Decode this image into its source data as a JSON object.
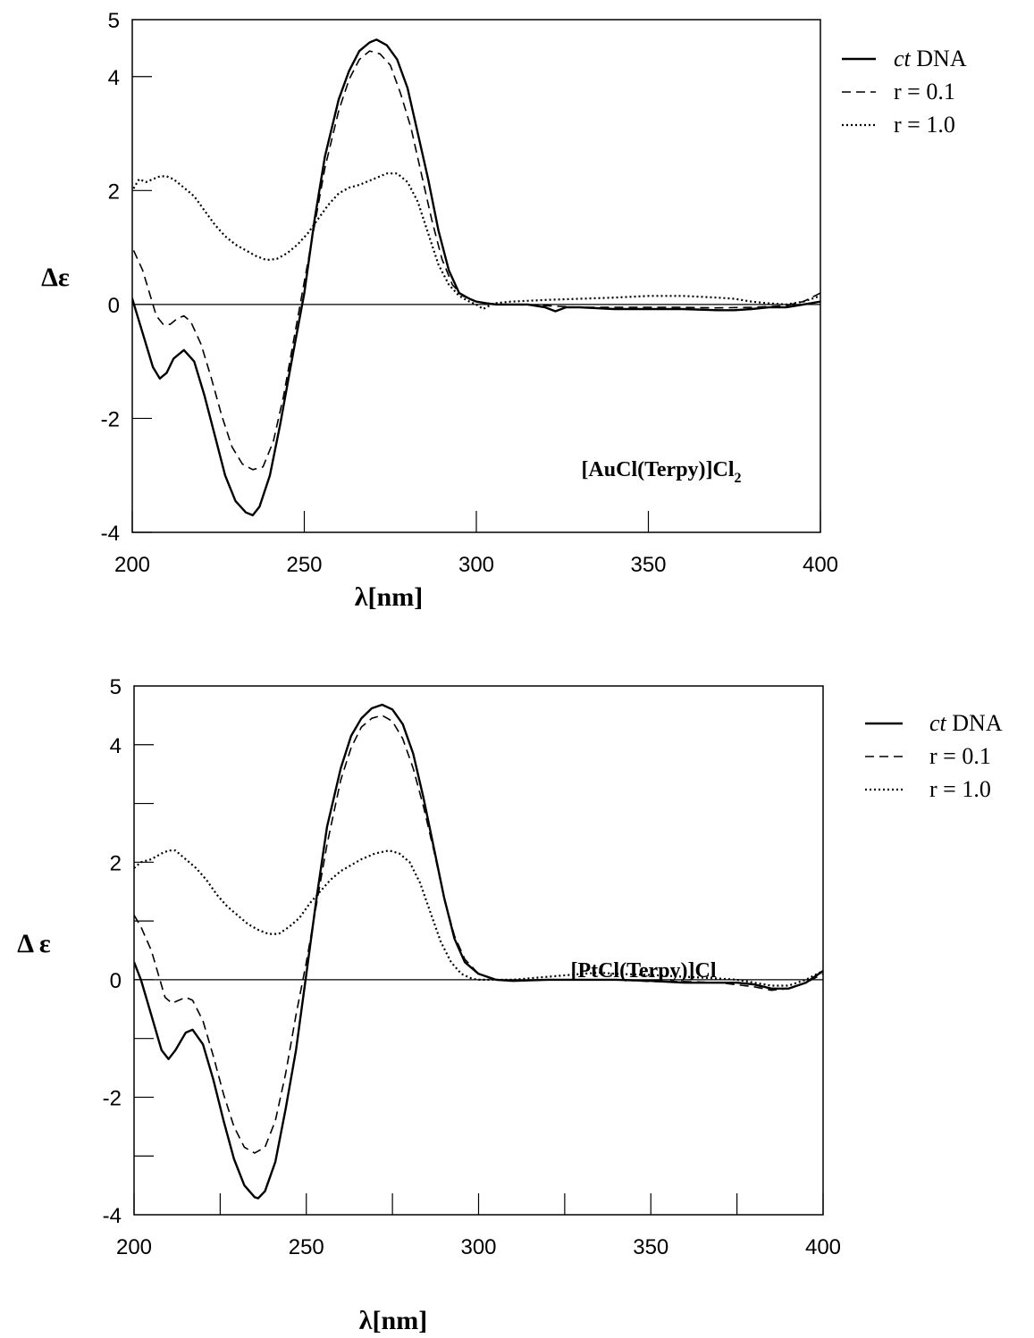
{
  "chart_data": [
    {
      "type": "line",
      "xlabel": "λ[nm]",
      "ylabel": "Δε",
      "xlim": [
        200,
        400
      ],
      "ylim": [
        -4,
        5
      ],
      "xticks": [
        200,
        250,
        300,
        350,
        400
      ],
      "xtick_labels": [
        "200",
        "250",
        "300",
        "350",
        "400"
      ],
      "yticks": [
        -4,
        -2,
        0,
        2,
        4
      ],
      "ytick_labels": [
        "-4",
        "-2",
        "0",
        "2",
        "4",
        "5"
      ],
      "ytick_label_values": [
        -4,
        -2,
        0,
        2,
        4,
        5
      ],
      "grid": false,
      "legend_position": "top-right, outside plot",
      "annotation": {
        "prefix": "[AuCl(Terpy)]Cl",
        "subscript": "2",
        "position": "lower-right"
      },
      "series": [
        {
          "name": "ct DNA",
          "name_italic": "ct",
          "name_rest": " DNA",
          "style": "solid",
          "x": [
            198,
            200,
            203,
            206,
            208,
            210,
            212,
            215,
            218,
            221,
            224,
            227,
            230,
            233,
            235,
            237,
            240,
            243,
            246,
            250,
            253,
            256,
            260,
            263,
            266,
            269,
            271,
            274,
            277,
            280,
            283,
            286,
            289,
            292,
            295,
            298,
            300,
            303,
            306,
            310,
            315,
            320,
            323,
            326,
            330,
            340,
            350,
            360,
            370,
            375,
            380,
            385,
            390,
            395,
            400
          ],
          "y": [
            0.3,
            0.1,
            -0.5,
            -1.1,
            -1.3,
            -1.2,
            -0.95,
            -0.8,
            -1.0,
            -1.6,
            -2.3,
            -3.0,
            -3.45,
            -3.65,
            -3.7,
            -3.55,
            -3.0,
            -2.1,
            -1.1,
            0.2,
            1.5,
            2.6,
            3.6,
            4.1,
            4.45,
            4.6,
            4.65,
            4.55,
            4.3,
            3.8,
            3.0,
            2.2,
            1.3,
            0.6,
            0.2,
            0.1,
            0.05,
            0.02,
            0.0,
            0.0,
            0.0,
            -0.05,
            -0.12,
            -0.05,
            -0.05,
            -0.08,
            -0.08,
            -0.08,
            -0.1,
            -0.1,
            -0.08,
            -0.05,
            -0.05,
            0.0,
            0.05
          ]
        },
        {
          "name": "r = 0.1",
          "name_italic": "",
          "name_rest": "r = 0.1",
          "style": "dashed",
          "x": [
            198,
            200,
            203,
            205,
            207,
            209,
            211,
            213,
            215,
            217,
            220,
            223,
            226,
            229,
            232,
            235,
            238,
            241,
            244,
            247,
            250,
            253,
            256,
            260,
            263,
            266,
            269,
            272,
            275,
            278,
            281,
            284,
            287,
            290,
            293,
            296,
            300,
            305,
            310,
            320,
            330,
            340,
            350,
            360,
            370,
            380,
            390,
            395,
            400
          ],
          "y": [
            1.15,
            1.0,
            0.6,
            0.2,
            -0.2,
            -0.35,
            -0.35,
            -0.25,
            -0.2,
            -0.3,
            -0.7,
            -1.3,
            -1.95,
            -2.5,
            -2.8,
            -2.9,
            -2.85,
            -2.4,
            -1.6,
            -0.6,
            0.4,
            1.4,
            2.4,
            3.4,
            3.95,
            4.3,
            4.45,
            4.4,
            4.2,
            3.7,
            3.1,
            2.3,
            1.5,
            0.8,
            0.35,
            0.15,
            0.05,
            0.0,
            0.0,
            -0.02,
            -0.05,
            -0.05,
            -0.05,
            -0.05,
            -0.06,
            -0.05,
            -0.02,
            0.05,
            0.2
          ]
        },
        {
          "name": "r = 1.0",
          "name_italic": "",
          "name_rest": "r = 1.0",
          "style": "dotted",
          "x": [
            198,
            200,
            202,
            204,
            206,
            208,
            210,
            212,
            215,
            218,
            221,
            224,
            227,
            230,
            233,
            236,
            239,
            242,
            245,
            248,
            251,
            254,
            257,
            260,
            263,
            266,
            270,
            274,
            277,
            280,
            283,
            286,
            289,
            292,
            295,
            298,
            300,
            302,
            305,
            310,
            320,
            330,
            340,
            350,
            360,
            370,
            375,
            380,
            385,
            390,
            395,
            400
          ],
          "y": [
            1.85,
            2.0,
            2.2,
            2.15,
            2.2,
            2.25,
            2.25,
            2.2,
            2.05,
            1.9,
            1.65,
            1.4,
            1.2,
            1.05,
            0.95,
            0.85,
            0.78,
            0.8,
            0.9,
            1.05,
            1.25,
            1.5,
            1.75,
            1.95,
            2.05,
            2.1,
            2.2,
            2.3,
            2.3,
            2.15,
            1.8,
            1.25,
            0.7,
            0.35,
            0.15,
            0.05,
            0.0,
            -0.08,
            0.02,
            0.05,
            0.08,
            0.1,
            0.12,
            0.15,
            0.15,
            0.12,
            0.1,
            0.05,
            0.02,
            0.0,
            0.05,
            0.15
          ]
        }
      ]
    },
    {
      "type": "line",
      "xlabel": "λ[nm]",
      "ylabel": "Δ ε",
      "xlim": [
        200,
        400
      ],
      "ylim": [
        -4,
        5
      ],
      "xticks": [
        200,
        225,
        250,
        275,
        300,
        325,
        350,
        375,
        400
      ],
      "xtick_labels": [
        "200",
        "250",
        "300",
        "350",
        "400"
      ],
      "xtick_label_values": [
        200,
        250,
        300,
        350,
        400
      ],
      "yticks": [
        -3,
        -2,
        -1,
        0,
        1,
        2,
        3,
        4
      ],
      "ytick_labels": [
        "-4",
        "-2",
        "0",
        "2",
        "4",
        "5"
      ],
      "ytick_label_values": [
        -4,
        -2,
        0,
        2,
        4,
        5
      ],
      "grid": false,
      "legend_position": "top-right, outside plot",
      "annotation": {
        "prefix": "[PtCl(Terpy)]Cl",
        "subscript": "",
        "position": "lower-right"
      },
      "series": [
        {
          "name": "ct DNA",
          "name_italic": "ct",
          "name_rest": " DNA",
          "style": "solid",
          "x": [
            200,
            202,
            205,
            208,
            210,
            212,
            215,
            217,
            220,
            223,
            226,
            229,
            232,
            235,
            236,
            238,
            241,
            244,
            247,
            250,
            253,
            256,
            260,
            263,
            266,
            269,
            272,
            275,
            278,
            281,
            284,
            287,
            290,
            293,
            296,
            300,
            305,
            310,
            320,
            330,
            340,
            350,
            360,
            370,
            375,
            380,
            385,
            390,
            395,
            400
          ],
          "y": [
            0.3,
            0.0,
            -0.6,
            -1.2,
            -1.35,
            -1.2,
            -0.9,
            -0.85,
            -1.1,
            -1.7,
            -2.4,
            -3.05,
            -3.5,
            -3.7,
            -3.72,
            -3.6,
            -3.1,
            -2.2,
            -1.2,
            0.1,
            1.4,
            2.6,
            3.6,
            4.15,
            4.45,
            4.62,
            4.68,
            4.6,
            4.35,
            3.85,
            3.1,
            2.25,
            1.4,
            0.7,
            0.3,
            0.1,
            0.0,
            -0.02,
            0.0,
            0.0,
            0.0,
            -0.02,
            -0.05,
            -0.05,
            -0.05,
            -0.08,
            -0.15,
            -0.15,
            -0.05,
            0.15
          ]
        },
        {
          "name": "r = 0.1",
          "name_italic": "",
          "name_rest": "r = 0.1",
          "style": "dashed",
          "x": [
            200,
            202,
            205,
            207,
            209,
            211,
            213,
            215,
            217,
            220,
            223,
            226,
            229,
            232,
            235,
            238,
            241,
            244,
            247,
            250,
            253,
            256,
            260,
            263,
            266,
            269,
            272,
            275,
            278,
            281,
            284,
            287,
            290,
            293,
            296,
            300,
            305,
            310,
            320,
            330,
            340,
            350,
            360,
            370,
            380,
            385,
            390,
            395,
            400
          ],
          "y": [
            1.1,
            0.9,
            0.5,
            0.1,
            -0.3,
            -0.4,
            -0.35,
            -0.3,
            -0.35,
            -0.7,
            -1.3,
            -1.95,
            -2.5,
            -2.85,
            -2.95,
            -2.85,
            -2.4,
            -1.6,
            -0.6,
            0.3,
            1.3,
            2.3,
            3.4,
            3.95,
            4.3,
            4.45,
            4.5,
            4.4,
            4.1,
            3.6,
            2.95,
            2.2,
            1.4,
            0.75,
            0.35,
            0.1,
            0.0,
            -0.02,
            0.0,
            0.0,
            0.0,
            -0.03,
            -0.03,
            -0.05,
            -0.12,
            -0.18,
            -0.15,
            -0.05,
            0.1
          ]
        },
        {
          "name": "r = 1.0",
          "name_italic": "",
          "name_rest": "r = 1.0",
          "style": "dotted",
          "x": [
            200,
            202,
            205,
            208,
            210,
            212,
            215,
            218,
            221,
            224,
            227,
            230,
            233,
            236,
            239,
            242,
            245,
            248,
            251,
            254,
            257,
            260,
            263,
            266,
            270,
            274,
            277,
            280,
            283,
            286,
            289,
            292,
            295,
            298,
            300,
            305,
            310,
            320,
            330,
            335,
            340,
            350,
            360,
            370,
            375,
            380,
            385,
            390,
            395,
            400
          ],
          "y": [
            1.9,
            2.0,
            2.05,
            2.15,
            2.2,
            2.2,
            2.05,
            1.9,
            1.7,
            1.45,
            1.25,
            1.1,
            0.95,
            0.85,
            0.78,
            0.78,
            0.9,
            1.05,
            1.3,
            1.5,
            1.7,
            1.85,
            1.95,
            2.05,
            2.15,
            2.2,
            2.15,
            2.0,
            1.65,
            1.15,
            0.65,
            0.3,
            0.1,
            0.02,
            0.0,
            0.0,
            0.0,
            0.05,
            0.1,
            0.12,
            0.1,
            0.08,
            0.05,
            0.02,
            0.0,
            -0.05,
            -0.1,
            -0.1,
            0.0,
            0.15
          ]
        }
      ]
    }
  ]
}
